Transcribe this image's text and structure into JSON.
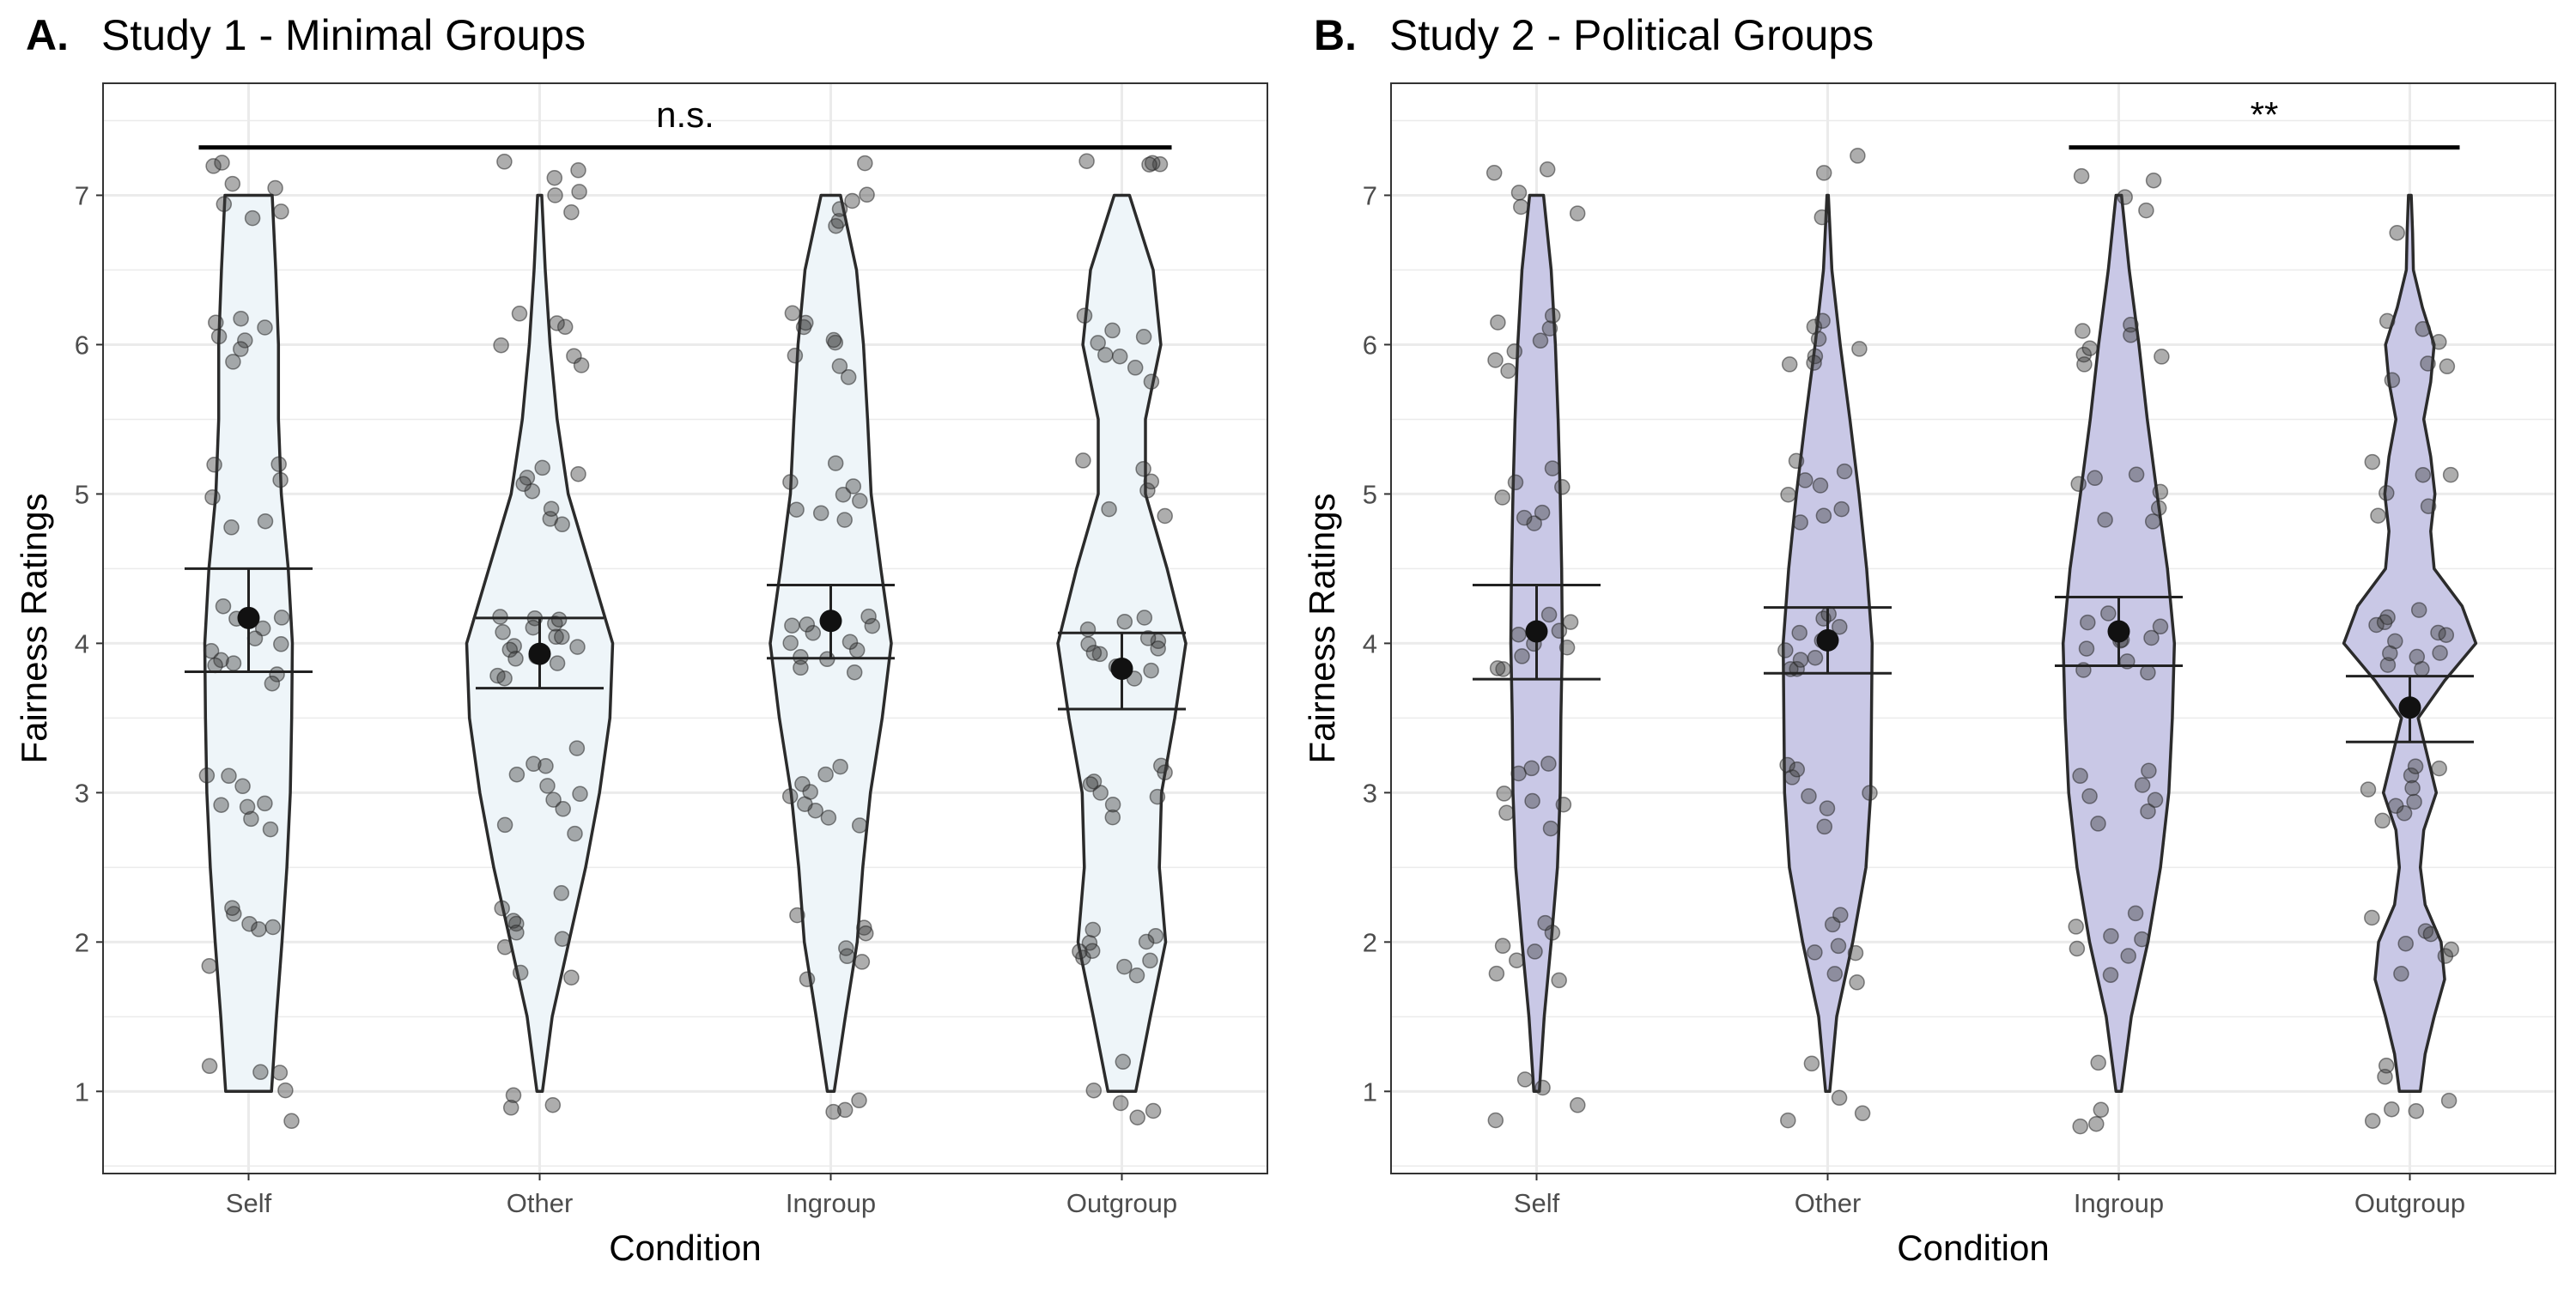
{
  "chart_data": [
    {
      "type": "violin",
      "panel_letter": "A.",
      "title": "Study 1 - Minimal Groups",
      "xlabel": "Condition",
      "ylabel": "Fairness Ratings",
      "ylim": [
        0.45,
        7.75
      ],
      "yticks": [
        1,
        2,
        3,
        4,
        5,
        6,
        7
      ],
      "categories": [
        "Self",
        "Other",
        "Ingroup",
        "Outgroup"
      ],
      "fill_color": "#eef5f9",
      "means": [
        4.17,
        3.93,
        4.15,
        3.83
      ],
      "ci_low": [
        3.81,
        3.7,
        3.9,
        3.56
      ],
      "ci_high": [
        4.5,
        4.17,
        4.39,
        4.07
      ],
      "significance": {
        "label": "n.s.",
        "from": "Self",
        "to": "Outgroup",
        "y": 7.32
      },
      "violins": [
        {
          "y": [
            1,
            1.5,
            2,
            2.5,
            3,
            3.5,
            4,
            4.5,
            5,
            5.5,
            6,
            6.5,
            7
          ],
          "w": [
            0.33,
            0.4,
            0.48,
            0.55,
            0.6,
            0.62,
            0.63,
            0.57,
            0.47,
            0.43,
            0.43,
            0.39,
            0.34
          ]
        },
        {
          "y": [
            1,
            1.5,
            2,
            2.5,
            3,
            3.5,
            4,
            4.5,
            5,
            5.5,
            6,
            6.5,
            7
          ],
          "w": [
            0.04,
            0.18,
            0.42,
            0.66,
            0.86,
            1.01,
            1.05,
            0.73,
            0.41,
            0.25,
            0.15,
            0.08,
            0.03
          ]
        },
        {
          "y": [
            1,
            1.5,
            2,
            2.5,
            3,
            3.5,
            4,
            4.5,
            5,
            5.5,
            6,
            6.5,
            7
          ],
          "w": [
            0.05,
            0.21,
            0.38,
            0.46,
            0.57,
            0.74,
            0.87,
            0.72,
            0.58,
            0.53,
            0.47,
            0.37,
            0.14
          ]
        },
        {
          "y": [
            1,
            1.5,
            2,
            2.5,
            3,
            3.5,
            4,
            4.5,
            5,
            5.5,
            6,
            6.5,
            7
          ],
          "w": [
            0.2,
            0.41,
            0.63,
            0.54,
            0.57,
            0.76,
            0.92,
            0.65,
            0.34,
            0.34,
            0.56,
            0.45,
            0.11
          ]
        }
      ],
      "points": [
        [
          1.12,
          1.1,
          2.15,
          2.2,
          1.82,
          2.25,
          2.11,
          2.12,
          2.8,
          3.1,
          2.9,
          3.05,
          2.75,
          2.88,
          3.1,
          2.95,
          3.85,
          3.95,
          4.0,
          4.1,
          3.8,
          4.2,
          4.15,
          3.75,
          3.9,
          4.05,
          4.22,
          3.88,
          4.8,
          5.2,
          5.18,
          4.82,
          5.0,
          5.1,
          5.9,
          6.0,
          6.1,
          6.2,
          5.95,
          6.15,
          6.05,
          6.9,
          6.95,
          7.05,
          7.08,
          7.2,
          7.22,
          6.85,
          0.8,
          1.0,
          1.15
        ],
        [
          0.92,
          0.97,
          0.9,
          1.8,
          1.75,
          1.95,
          2.0,
          2.1,
          2.15,
          2.2,
          2.3,
          2.05,
          2.8,
          2.95,
          3.1,
          3.2,
          3.0,
          2.9,
          3.15,
          2.75,
          3.3,
          3.05,
          3.85,
          3.9,
          4.0,
          4.05,
          4.1,
          4.15,
          3.8,
          3.95,
          4.2,
          4.12,
          3.75,
          4.02,
          3.98,
          4.08,
          4.18,
          3.92,
          4.85,
          5.0,
          5.1,
          5.2,
          4.9,
          5.15,
          4.8,
          5.05,
          5.95,
          6.0,
          6.1,
          6.2,
          5.85,
          6.15,
          7.0,
          7.1,
          7.15,
          7.2,
          6.9,
          7.05
        ],
        [
          0.85,
          0.88,
          0.93,
          1.75,
          1.9,
          2.1,
          2.05,
          1.95,
          1.85,
          2.2,
          2.9,
          3.0,
          3.1,
          2.8,
          2.95,
          3.05,
          3.15,
          2.85,
          3.0,
          3.9,
          4.0,
          4.05,
          4.1,
          3.85,
          4.15,
          3.95,
          4.2,
          3.8,
          4.02,
          3.88,
          4.12,
          4.8,
          4.9,
          5.0,
          5.2,
          4.85,
          5.05,
          5.1,
          4.95,
          5.8,
          6.0,
          6.1,
          6.2,
          5.9,
          6.15,
          6.05,
          5.85,
          6.8,
          6.85,
          6.9,
          7.0,
          7.2,
          6.95
        ],
        [
          0.82,
          0.85,
          0.95,
          1.0,
          1.2,
          1.8,
          1.9,
          2.0,
          1.85,
          1.95,
          2.05,
          1.88,
          2.0,
          1.92,
          2.1,
          2.95,
          3.0,
          3.1,
          3.2,
          2.85,
          3.05,
          3.15,
          2.9,
          3.8,
          3.9,
          4.0,
          4.05,
          4.1,
          3.85,
          4.15,
          3.95,
          3.78,
          4.02,
          4.12,
          3.92,
          4.88,
          5.0,
          5.1,
          5.2,
          4.85,
          5.15,
          5.75,
          5.9,
          6.0,
          5.85,
          6.05,
          5.95,
          6.2,
          6.1,
          7.2,
          7.22,
          7.25,
          7.18
        ]
      ]
    },
    {
      "type": "violin",
      "panel_letter": "B.",
      "title": "Study 2 - Political Groups",
      "xlabel": "Condition",
      "ylabel": "Fairness Ratings",
      "ylim": [
        0.45,
        7.75
      ],
      "yticks": [
        1,
        2,
        3,
        4,
        5,
        6,
        7
      ],
      "categories": [
        "Self",
        "Other",
        "Ingroup",
        "Outgroup"
      ],
      "fill_color": "#c9c8e6",
      "means": [
        4.08,
        4.02,
        4.08,
        3.57
      ],
      "ci_low": [
        3.76,
        3.8,
        3.85,
        3.34
      ],
      "ci_high": [
        4.39,
        4.24,
        4.31,
        3.78
      ],
      "significance": {
        "label": "**",
        "from": "Ingroup",
        "to": "Outgroup",
        "y": 7.32
      },
      "violins": [
        {
          "y": [
            1,
            1.5,
            2,
            2.5,
            3,
            3.5,
            4,
            4.5,
            5,
            5.5,
            6,
            6.5,
            7
          ],
          "w": [
            0.04,
            0.11,
            0.21,
            0.3,
            0.34,
            0.35,
            0.37,
            0.36,
            0.34,
            0.31,
            0.27,
            0.21,
            0.1
          ]
        },
        {
          "y": [
            1,
            1.5,
            2,
            2.5,
            3,
            3.5,
            4,
            4.5,
            5,
            5.5,
            6,
            6.5,
            7
          ],
          "w": [
            0.03,
            0.13,
            0.36,
            0.55,
            0.62,
            0.63,
            0.64,
            0.56,
            0.45,
            0.32,
            0.18,
            0.06,
            0.01
          ]
        },
        {
          "y": [
            1,
            1.5,
            2,
            2.5,
            3,
            3.5,
            4,
            4.5,
            5,
            5.5,
            6,
            6.5,
            7
          ],
          "w": [
            0.04,
            0.18,
            0.42,
            0.6,
            0.72,
            0.77,
            0.8,
            0.7,
            0.55,
            0.41,
            0.29,
            0.15,
            0.04
          ]
        },
        {
          "y": [
            1,
            1.25,
            1.5,
            1.75,
            2,
            2.25,
            2.5,
            2.75,
            3,
            3.25,
            3.5,
            3.75,
            4,
            4.25,
            4.5,
            4.75,
            5,
            5.25,
            5.5,
            5.75,
            6,
            6.25,
            6.5,
            6.75,
            7
          ],
          "w": [
            0.15,
            0.22,
            0.35,
            0.5,
            0.45,
            0.22,
            0.15,
            0.2,
            0.38,
            0.25,
            0.12,
            0.5,
            0.95,
            0.75,
            0.35,
            0.3,
            0.36,
            0.3,
            0.2,
            0.3,
            0.35,
            0.18,
            0.05,
            0.04,
            0.02
          ]
        }
      ],
      "points": [
        [
          0.78,
          1.0,
          0.92,
          1.1,
          1.75,
          1.8,
          1.95,
          2.0,
          2.05,
          2.1,
          1.85,
          2.75,
          2.85,
          2.9,
          3.0,
          3.1,
          3.2,
          3.15,
          2.95,
          3.8,
          3.9,
          4.0,
          4.05,
          4.1,
          3.85,
          4.15,
          4.2,
          3.95,
          4.8,
          4.85,
          5.0,
          5.1,
          5.15,
          4.9,
          5.05,
          5.8,
          5.9,
          6.0,
          6.1,
          6.15,
          5.95,
          6.2,
          6.9,
          7.0,
          7.15,
          7.18,
          6.95
        ],
        [
          0.8,
          0.85,
          0.95,
          1.2,
          1.8,
          1.9,
          2.0,
          2.1,
          1.95,
          2.2,
          1.75,
          2.8,
          2.9,
          3.0,
          3.1,
          3.2,
          2.95,
          3.15,
          3.8,
          3.9,
          4.0,
          4.05,
          4.1,
          4.15,
          3.85,
          3.95,
          4.2,
          3.88,
          4.8,
          4.9,
          5.0,
          5.1,
          5.15,
          4.85,
          5.05,
          5.2,
          5.85,
          5.95,
          6.0,
          6.1,
          6.15,
          5.9,
          6.05,
          6.85,
          7.15,
          7.25
        ],
        [
          0.78,
          0.8,
          0.85,
          1.2,
          1.8,
          1.9,
          2.0,
          2.1,
          1.95,
          2.2,
          2.05,
          2.8,
          2.9,
          3.0,
          3.1,
          3.05,
          2.95,
          3.15,
          3.8,
          3.9,
          4.0,
          4.05,
          4.1,
          4.15,
          3.85,
          3.95,
          4.2,
          4.02,
          4.8,
          4.9,
          5.0,
          5.1,
          5.15,
          4.85,
          5.05,
          5.85,
          5.95,
          6.0,
          6.1,
          6.15,
          6.05,
          5.9,
          6.9,
          7.0,
          7.1,
          7.15
        ],
        [
          0.78,
          0.85,
          0.95,
          1.1,
          1.2,
          1.8,
          1.9,
          2.0,
          2.1,
          2.05,
          1.95,
          2.15,
          2.8,
          2.9,
          3.0,
          3.1,
          3.2,
          2.95,
          3.05,
          3.15,
          3.8,
          3.9,
          4.0,
          4.05,
          4.1,
          4.15,
          3.85,
          3.95,
          4.2,
          3.92,
          4.08,
          4.12,
          4.9,
          5.0,
          5.1,
          5.2,
          4.85,
          5.15,
          5.75,
          5.85,
          6.0,
          6.1,
          6.15,
          5.9,
          6.75,
          0.88,
          2.85
        ]
      ]
    }
  ]
}
